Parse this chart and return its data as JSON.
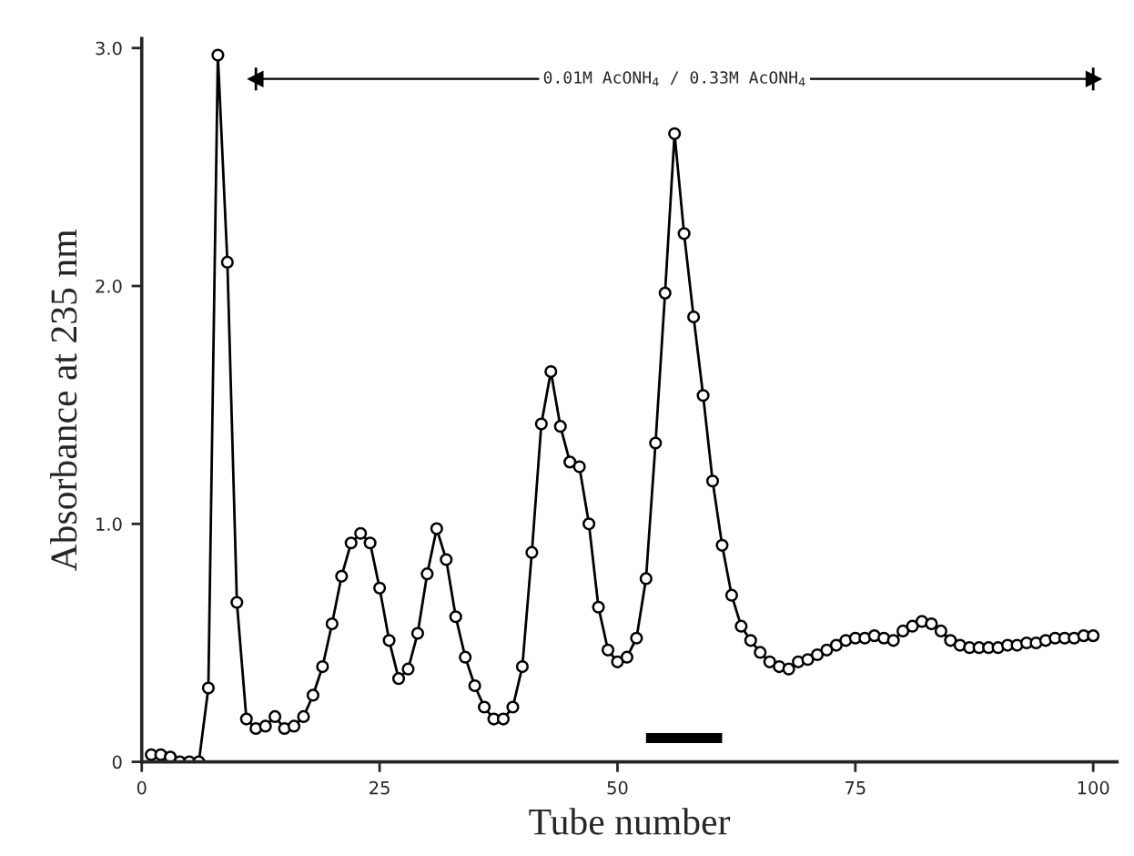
{
  "chart_data": {
    "type": "line",
    "xlabel": "Tube number",
    "ylabel": "Absorbance at 235 nm",
    "xlim": [
      0,
      102.5
    ],
    "ylim": [
      0,
      3.04
    ],
    "xticks": [
      0,
      25,
      50,
      75,
      100
    ],
    "yticks": [
      0,
      {
        "value": 1,
        "label": "1.0"
      },
      {
        "value": 2,
        "label": "2.0"
      },
      {
        "value": 3,
        "label": "3.0"
      }
    ],
    "grid": false,
    "legend": false,
    "series": [
      {
        "color": "#000000",
        "marker": "circle",
        "x": [
          1,
          2,
          3,
          4,
          5,
          6,
          7,
          8,
          9,
          10,
          11,
          12,
          13,
          14,
          15,
          16,
          17,
          18,
          19,
          20,
          21,
          22,
          23,
          24,
          25,
          26,
          27,
          28,
          29,
          30,
          31,
          32,
          33,
          34,
          35,
          36,
          37,
          38,
          39,
          40,
          41,
          42,
          43,
          44,
          45,
          46,
          47,
          48,
          49,
          50,
          51,
          52,
          53,
          54,
          55,
          56,
          57,
          58,
          59,
          60,
          61,
          62,
          63,
          64,
          65,
          66,
          67,
          68,
          69,
          70,
          71,
          72,
          73,
          74,
          75,
          76,
          77,
          78,
          79,
          80,
          81,
          82,
          83,
          84,
          85,
          86,
          87,
          88,
          89,
          90,
          91,
          92,
          93,
          94,
          95,
          96,
          97,
          98,
          99,
          100
        ],
        "values": [
          0.03,
          0.03,
          0.02,
          0,
          0,
          0,
          0.31,
          2.97,
          2.1,
          0.67,
          0.18,
          0.14,
          0.15,
          0.19,
          0.14,
          0.15,
          0.19,
          0.28,
          0.4,
          0.58,
          0.78,
          0.92,
          0.96,
          0.92,
          0.73,
          0.51,
          0.35,
          0.39,
          0.54,
          0.79,
          0.98,
          0.85,
          0.61,
          0.44,
          0.32,
          0.23,
          0.18,
          0.18,
          0.23,
          0.4,
          0.88,
          1.42,
          1.64,
          1.41,
          1.26,
          1.24,
          1.0,
          0.65,
          0.47,
          0.42,
          0.44,
          0.52,
          0.77,
          1.34,
          1.97,
          2.64,
          2.22,
          1.87,
          1.54,
          1.18,
          0.91,
          0.7,
          0.57,
          0.51,
          0.46,
          0.42,
          0.4,
          0.39,
          0.42,
          0.43,
          0.45,
          0.47,
          0.49,
          0.51,
          0.52,
          0.52,
          0.53,
          0.52,
          0.51,
          0.55,
          0.57,
          0.59,
          0.58,
          0.55,
          0.51,
          0.49,
          0.48,
          0.48,
          0.48,
          0.48,
          0.49,
          0.49,
          0.5,
          0.5,
          0.51,
          0.52,
          0.52,
          0.52,
          0.53,
          0.53
        ]
      },
      {
        "color": "#000000",
        "marker": "triangle",
        "x": [
          12,
          100
        ],
        "values": [
          2.87,
          2.87
        ]
      },
      {
        "color": "#000000",
        "marker": "none",
        "x": [
          53,
          61
        ],
        "values": [
          0.1,
          0.1
        ]
      }
    ],
    "annotations": [
      {
        "text": "0.01M AcONH$_{4}$ / 0.33M AcONH$_{4}$",
        "x": 56,
        "y": 2.87
      }
    ]
  }
}
